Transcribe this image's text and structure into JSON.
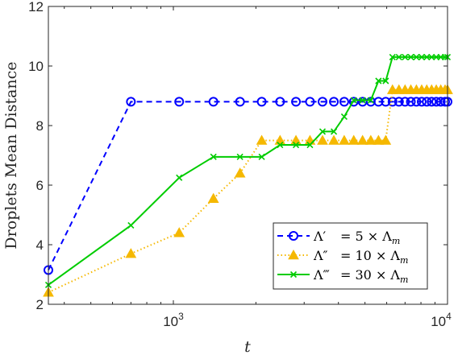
{
  "chart_data": {
    "type": "line",
    "xlabel": "t",
    "ylabel": "Droplets Mean Distance",
    "xscale": "log",
    "xlim": [
      350,
      10000
    ],
    "ylim": [
      2,
      12
    ],
    "x_ticks": [
      1000,
      10000
    ],
    "x_tick_labels": [
      {
        "base": "10",
        "exp": "3"
      },
      {
        "base": "10",
        "exp": "4"
      }
    ],
    "y_ticks": [
      2,
      4,
      6,
      8,
      10,
      12
    ],
    "y_tick_labels": [
      "2",
      "4",
      "6",
      "8",
      "10",
      "12"
    ],
    "grid": false,
    "legend_position": "bottom-right",
    "series": [
      {
        "name": "Λ′  = 5 × Λ_m",
        "legend": {
          "sym": "Λ′",
          "rhs": "= 5 × Λ",
          "sub": "m"
        },
        "color": "#0000ff",
        "line_style": "dashed",
        "marker": "circle",
        "x": [
          350,
          700,
          1050,
          1400,
          1750,
          2100,
          2450,
          2800,
          3150,
          3500,
          3850,
          4200,
          4550,
          4900,
          5250,
          5600,
          5950,
          6300,
          6650,
          7000,
          7350,
          7700,
          8050,
          8400,
          8750,
          9100,
          9450,
          9800,
          10000
        ],
        "y": [
          3.15,
          8.8,
          8.8,
          8.8,
          8.8,
          8.8,
          8.8,
          8.8,
          8.8,
          8.8,
          8.8,
          8.8,
          8.8,
          8.8,
          8.8,
          8.8,
          8.8,
          8.8,
          8.8,
          8.8,
          8.8,
          8.8,
          8.8,
          8.8,
          8.8,
          8.8,
          8.8,
          8.8,
          8.8
        ]
      },
      {
        "name": "Λ″ = 10 × Λ_m",
        "legend": {
          "sym": "Λ″",
          "rhs": "= 10 × Λ",
          "sub": "m"
        },
        "color": "#f5b800",
        "line_style": "dotted",
        "marker": "triangle",
        "x": [
          350,
          700,
          1050,
          1400,
          1750,
          2100,
          2450,
          2800,
          3150,
          3500,
          3850,
          4200,
          4550,
          4900,
          5250,
          5600,
          5950,
          6300,
          6650,
          7000,
          7350,
          7700,
          8050,
          8400,
          8750,
          9100,
          9450,
          9800,
          10000
        ],
        "y": [
          2.4,
          3.7,
          4.4,
          5.55,
          6.4,
          7.5,
          7.5,
          7.5,
          7.5,
          7.5,
          7.5,
          7.5,
          7.5,
          7.5,
          7.5,
          7.5,
          7.5,
          9.2,
          9.2,
          9.2,
          9.2,
          9.2,
          9.2,
          9.2,
          9.2,
          9.2,
          9.2,
          9.2,
          9.2
        ]
      },
      {
        "name": "Λ‴ = 30 × Λ_m",
        "legend": {
          "sym": "Λ‴",
          "rhs": "= 30 × Λ",
          "sub": "m"
        },
        "color": "#00cc00",
        "line_style": "solid",
        "marker": "x",
        "x": [
          350,
          700,
          1050,
          1400,
          1750,
          2100,
          2450,
          2800,
          3150,
          3500,
          3850,
          4200,
          4550,
          4900,
          5250,
          5600,
          5950,
          6300,
          6650,
          7000,
          7350,
          7700,
          8050,
          8400,
          8750,
          9100,
          9450,
          9800,
          10000
        ],
        "y": [
          2.65,
          4.65,
          6.25,
          6.95,
          6.95,
          6.95,
          7.35,
          7.35,
          7.35,
          7.8,
          7.8,
          8.3,
          8.85,
          8.85,
          8.85,
          9.5,
          9.5,
          10.3,
          10.3,
          10.3,
          10.3,
          10.3,
          10.3,
          10.3,
          10.3,
          10.3,
          10.3,
          10.3,
          10.3
        ]
      }
    ]
  }
}
